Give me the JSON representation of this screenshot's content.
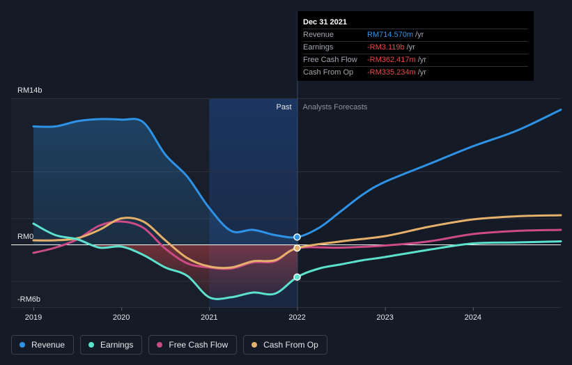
{
  "tooltip": {
    "date": "Dec 31 2021",
    "rows": [
      {
        "label": "Revenue",
        "value": "RM714.570m",
        "unit": "/yr",
        "color": "#2e93e6"
      },
      {
        "label": "Earnings",
        "value": "-RM3.119b",
        "unit": "/yr",
        "color": "#e64a4a"
      },
      {
        "label": "Free Cash Flow",
        "value": "-RM362.417m",
        "unit": "/yr",
        "color": "#e64a4a"
      },
      {
        "label": "Cash From Op",
        "value": "-RM335.234m",
        "unit": "/yr",
        "color": "#e64a4a"
      }
    ]
  },
  "legend": [
    {
      "label": "Revenue",
      "color": "#2e93e6"
    },
    {
      "label": "Earnings",
      "color": "#5ce1cd"
    },
    {
      "label": "Free Cash Flow",
      "color": "#cc4a86"
    },
    {
      "label": "Cash From Op",
      "color": "#e5b06a"
    }
  ],
  "chart_data": {
    "type": "line",
    "y_unit": "RM b",
    "y_tick_labels": [
      "RM14b",
      "RM0",
      "-RM6b"
    ],
    "ylim": [
      -6,
      14
    ],
    "xlim": [
      2019.0,
      2025.0
    ],
    "x_ticks": [
      2019,
      2020,
      2021,
      2022,
      2023,
      2024
    ],
    "x_tick_labels": [
      "2019",
      "2020",
      "2021",
      "2022",
      "2023",
      "2024"
    ],
    "past_label": "Past",
    "forecast_label": "Analysts Forecasts",
    "divider_x": 2022.0,
    "highlight_range": [
      2021.0,
      2022.0
    ],
    "grid": true,
    "legend_position": "bottom-left",
    "series": [
      {
        "name": "Revenue",
        "color": "#2e93e6",
        "points": [
          [
            2019.0,
            11.3
          ],
          [
            2019.25,
            11.3
          ],
          [
            2019.5,
            11.8
          ],
          [
            2019.75,
            12.0
          ],
          [
            2020.0,
            11.95
          ],
          [
            2020.25,
            11.7
          ],
          [
            2020.5,
            8.6
          ],
          [
            2020.75,
            6.5
          ],
          [
            2021.0,
            3.5
          ],
          [
            2021.25,
            1.3
          ],
          [
            2021.5,
            1.4
          ],
          [
            2021.75,
            0.9
          ],
          [
            2022.0,
            0.71
          ],
          [
            2022.25,
            1.6
          ],
          [
            2022.5,
            3.2
          ],
          [
            2022.75,
            4.8
          ],
          [
            2023.0,
            6.0
          ],
          [
            2023.5,
            7.7
          ],
          [
            2024.0,
            9.4
          ],
          [
            2024.5,
            10.9
          ],
          [
            2025.0,
            12.9
          ]
        ]
      },
      {
        "name": "Earnings",
        "color": "#5ce1cd",
        "points": [
          [
            2019.0,
            2.0
          ],
          [
            2019.25,
            0.9
          ],
          [
            2019.5,
            0.5
          ],
          [
            2019.75,
            -0.3
          ],
          [
            2020.0,
            -0.2
          ],
          [
            2020.25,
            -1.0
          ],
          [
            2020.5,
            -2.2
          ],
          [
            2020.75,
            -3.0
          ],
          [
            2021.0,
            -5.05
          ],
          [
            2021.25,
            -5.05
          ],
          [
            2021.5,
            -4.6
          ],
          [
            2021.75,
            -4.7
          ],
          [
            2022.0,
            -3.12
          ],
          [
            2022.25,
            -2.3
          ],
          [
            2022.5,
            -1.9
          ],
          [
            2022.75,
            -1.5
          ],
          [
            2023.0,
            -1.2
          ],
          [
            2023.5,
            -0.5
          ],
          [
            2024.0,
            0.1
          ],
          [
            2024.5,
            0.2
          ],
          [
            2025.0,
            0.3
          ]
        ]
      },
      {
        "name": "Free Cash Flow",
        "color": "#cc4a86",
        "points": [
          [
            2019.0,
            -0.8
          ],
          [
            2019.25,
            -0.3
          ],
          [
            2019.5,
            0.5
          ],
          [
            2019.75,
            1.8
          ],
          [
            2020.0,
            2.2
          ],
          [
            2020.25,
            1.6
          ],
          [
            2020.5,
            -0.4
          ],
          [
            2020.75,
            -1.8
          ],
          [
            2021.0,
            -2.2
          ],
          [
            2021.25,
            -2.3
          ],
          [
            2021.5,
            -1.7
          ],
          [
            2021.75,
            -1.6
          ],
          [
            2022.0,
            -0.36
          ],
          [
            2022.5,
            -0.3
          ],
          [
            2023.0,
            -0.1
          ],
          [
            2023.5,
            0.3
          ],
          [
            2024.0,
            1.0
          ],
          [
            2024.5,
            1.3
          ],
          [
            2025.0,
            1.4
          ]
        ]
      },
      {
        "name": "Cash From Op",
        "color": "#e5b06a",
        "points": [
          [
            2019.0,
            0.4
          ],
          [
            2019.25,
            0.4
          ],
          [
            2019.5,
            0.6
          ],
          [
            2019.75,
            1.4
          ],
          [
            2020.0,
            2.5
          ],
          [
            2020.25,
            2.2
          ],
          [
            2020.5,
            0.4
          ],
          [
            2020.75,
            -1.3
          ],
          [
            2021.0,
            -2.1
          ],
          [
            2021.25,
            -2.2
          ],
          [
            2021.5,
            -1.6
          ],
          [
            2021.75,
            -1.5
          ],
          [
            2022.0,
            -0.34
          ],
          [
            2022.5,
            0.3
          ],
          [
            2023.0,
            0.8
          ],
          [
            2023.5,
            1.7
          ],
          [
            2024.0,
            2.4
          ],
          [
            2024.5,
            2.7
          ],
          [
            2025.0,
            2.8
          ]
        ]
      }
    ],
    "markers": [
      {
        "series": "Revenue",
        "x": 2022.0,
        "y": 0.71
      },
      {
        "series": "Cash From Op",
        "x": 2022.0,
        "y": -0.34
      },
      {
        "series": "Earnings",
        "x": 2022.0,
        "y": -3.12
      }
    ]
  }
}
